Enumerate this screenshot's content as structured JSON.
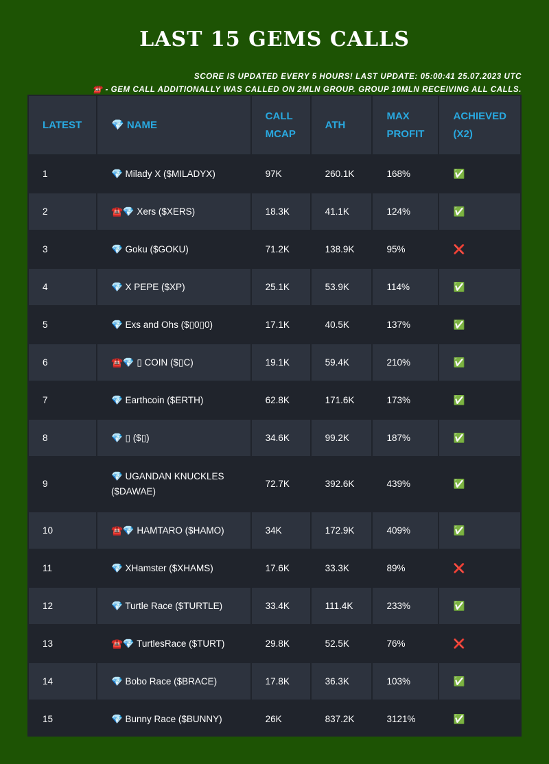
{
  "title": "Last 15 Gems Calls",
  "notes": [
    "SCORE IS UPDATED EVERY 5 HOURS! LAST UPDATE: 05:00:41 25.07.2023 UTC",
    "☎️ - GEM CALL ADDITIONALLY WAS CALLED ON 2MLN GROUP. GROUP 10MLN RECEIVING ALL CALLS."
  ],
  "headers": [
    "Latest",
    "💎 Name",
    "Call MCAP",
    "ATH",
    "Max Profit",
    "Achieved (x2)"
  ],
  "rows": [
    [
      "1",
      "💎 Milady X ($MILADYX)",
      "97K",
      "260.1K",
      "168%",
      "✅"
    ],
    [
      "2",
      "☎️💎 Xers ($XERS)",
      "18.3K",
      "41.1K",
      "124%",
      "✅"
    ],
    [
      "3",
      "💎 Goku ($GOKU)",
      "71.2K",
      "138.9K",
      "95%",
      "❌"
    ],
    [
      "4",
      "💎 X PEPE ($XP)",
      "25.1K",
      "53.9K",
      "114%",
      "✅"
    ],
    [
      "5",
      "💎 Exs and Ohs ($▯0▯0)",
      "17.1K",
      "40.5K",
      "137%",
      "✅"
    ],
    [
      "6",
      "☎️💎 ▯ COIN ($▯C)",
      "19.1K",
      "59.4K",
      "210%",
      "✅"
    ],
    [
      "7",
      "💎 Earthcoin ($ERTH)",
      "62.8K",
      "171.6K",
      "173%",
      "✅"
    ],
    [
      "8",
      "💎 ▯ ($▯)",
      "34.6K",
      "99.2K",
      "187%",
      "✅"
    ],
    [
      "9",
      "💎 UGANDAN KNUCKLES ($DAWAE)",
      "72.7K",
      "392.6K",
      "439%",
      "✅"
    ],
    [
      "10",
      "☎️💎 HAMTARO ($HAMO)",
      "34K",
      "172.9K",
      "409%",
      "✅"
    ],
    [
      "11",
      "💎 XHamster ($XHAMS)",
      "17.6K",
      "33.3K",
      "89%",
      "❌"
    ],
    [
      "12",
      "💎 Turtle Race ($TURTLE)",
      "33.4K",
      "111.4K",
      "233%",
      "✅"
    ],
    [
      "13",
      "☎️💎 TurtlesRace ($TURT)",
      "29.8K",
      "52.5K",
      "76%",
      "❌"
    ],
    [
      "14",
      "💎 Bobo Race ($BRACE)",
      "17.8K",
      "36.3K",
      "103%",
      "✅"
    ],
    [
      "15",
      "💎 Bunny Race ($BUNNY)",
      "26K",
      "837.2K",
      "3121%",
      "✅"
    ]
  ]
}
